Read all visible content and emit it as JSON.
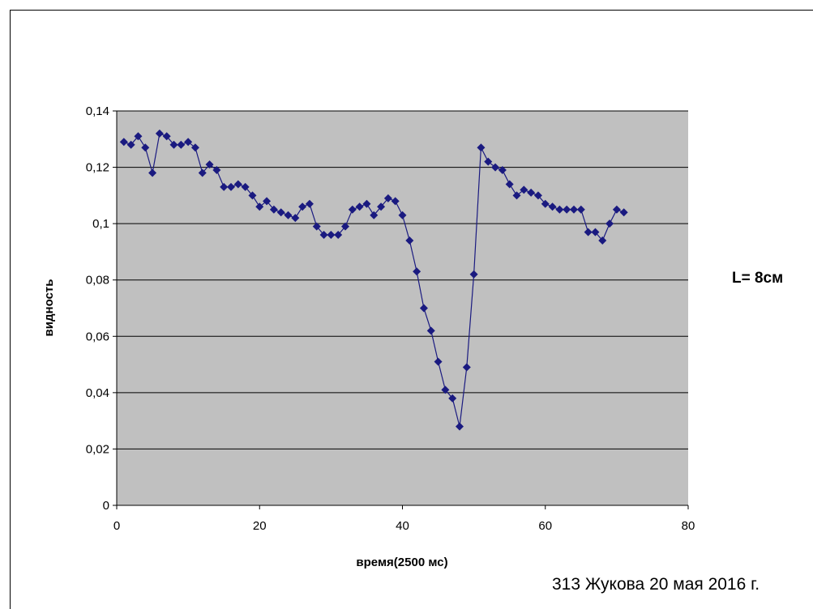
{
  "chart_data": {
    "type": "line",
    "xlabel": "время(2500 мс)",
    "ylabel": "видность",
    "xlim": [
      0,
      80
    ],
    "ylim": [
      0,
      0.14
    ],
    "xticks": [
      0,
      20,
      40,
      60,
      80
    ],
    "yticks": [
      0,
      0.02,
      0.04,
      0.06,
      0.08,
      0.1,
      0.12,
      0.14
    ],
    "xtick_labels": [
      "0",
      "20",
      "40",
      "60",
      "80"
    ],
    "ytick_labels": [
      "0",
      "0,02",
      "0,04",
      "0,06",
      "0,08",
      "0,1",
      "0,12",
      "0,14"
    ],
    "grid": "horizontal",
    "plot_background": "#c0c0c0",
    "series": [
      {
        "color": "#1a1a80",
        "marker": "diamond",
        "x": [
          1,
          2,
          3,
          4,
          5,
          6,
          7,
          8,
          9,
          10,
          11,
          12,
          13,
          14,
          15,
          16,
          17,
          18,
          19,
          20,
          21,
          22,
          23,
          24,
          25,
          26,
          27,
          28,
          29,
          30,
          31,
          32,
          33,
          34,
          35,
          36,
          37,
          38,
          39,
          40,
          41,
          42,
          43,
          44,
          45,
          46,
          47,
          48,
          49,
          50,
          51,
          52,
          53,
          54,
          55,
          56,
          57,
          58,
          59,
          60,
          61,
          62,
          63,
          64,
          65,
          66,
          67,
          68,
          69,
          70,
          71
        ],
        "y": [
          0.129,
          0.128,
          0.131,
          0.127,
          0.118,
          0.132,
          0.131,
          0.128,
          0.128,
          0.129,
          0.127,
          0.118,
          0.121,
          0.119,
          0.113,
          0.113,
          0.114,
          0.113,
          0.11,
          0.106,
          0.108,
          0.105,
          0.104,
          0.103,
          0.102,
          0.106,
          0.107,
          0.099,
          0.096,
          0.096,
          0.096,
          0.099,
          0.105,
          0.106,
          0.107,
          0.103,
          0.106,
          0.109,
          0.108,
          0.103,
          0.094,
          0.083,
          0.07,
          0.062,
          0.051,
          0.041,
          0.038,
          0.028,
          0.049,
          0.082,
          0.127,
          0.122,
          0.12,
          0.119,
          0.114,
          0.11,
          0.112,
          0.111,
          0.11,
          0.107,
          0.106,
          0.105,
          0.105,
          0.105,
          0.105,
          0.097,
          0.097,
          0.094,
          0.1,
          0.105,
          0.104
        ]
      }
    ]
  },
  "side_label": "L= 8см",
  "caption": "313 Жукова  20 мая 2016 г."
}
